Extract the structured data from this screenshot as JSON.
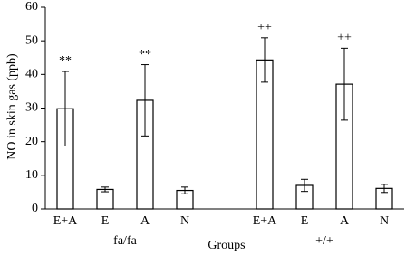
{
  "chart_data": {
    "type": "bar",
    "y_label": "NO in skin gas (ppb)",
    "x_label": "Groups",
    "categories": [
      "E+A",
      "E",
      "A",
      "N",
      null,
      "E+A",
      "E",
      "A",
      "N"
    ],
    "values": [
      29.8,
      5.8,
      32.3,
      5.5,
      null,
      44.3,
      7.0,
      37.1,
      6.1
    ],
    "errors": [
      11.1,
      0.7,
      10.6,
      1.0,
      null,
      6.6,
      1.8,
      10.7,
      1.2
    ],
    "markers": [
      "**",
      null,
      "**",
      null,
      null,
      "++",
      null,
      "++",
      null
    ],
    "groups": [
      "fa/fa",
      "+/+"
    ],
    "color": "#ffffff",
    "ylim": [
      0,
      60
    ],
    "yticks": [
      0,
      10,
      20,
      30,
      40,
      50,
      60
    ]
  }
}
